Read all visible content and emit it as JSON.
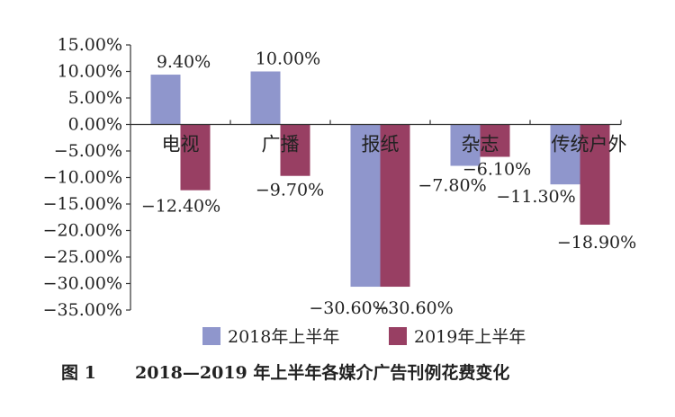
{
  "chart_data": {
    "type": "bar",
    "title": "图 1    2018—2019 年上半年各媒介广告刊例花费变化",
    "caption_label": "图 1",
    "caption_text": "2018—2019 年上半年各媒介广告刊例花费变化",
    "categories": [
      "电视",
      "广播",
      "报纸",
      "杂志",
      "传统户外"
    ],
    "series": [
      {
        "name": "2018年上半年",
        "color": "#8f96cc",
        "values": [
          9.4,
          10.0,
          -30.6,
          -7.8,
          -11.3
        ],
        "labels": [
          "9.40%",
          "10.00%",
          "−30.60%",
          "−7.80%",
          "−11.30%"
        ]
      },
      {
        "name": "2019年上半年",
        "color": "#983f63",
        "values": [
          -12.4,
          -9.7,
          -30.6,
          -6.1,
          -18.9
        ],
        "labels": [
          "−12.40%",
          "−9.70%",
          "−30.60%",
          "−6.10%",
          "−18.90%"
        ]
      }
    ],
    "y_ticks": [
      "15.00%",
      "10.00%",
      "5.00%",
      "0.00%",
      "−5.00%",
      "−10.00%",
      "−15.00%",
      "−20.00%",
      "−25.00%",
      "−30.00%",
      "−35.00%"
    ],
    "y_tick_values": [
      15,
      10,
      5,
      0,
      -5,
      -10,
      -15,
      -20,
      -25,
      -30,
      -35
    ],
    "ylim": [
      -35,
      15
    ],
    "xlabel": "",
    "ylabel": "",
    "grid": false,
    "legend_position": "bottom"
  }
}
